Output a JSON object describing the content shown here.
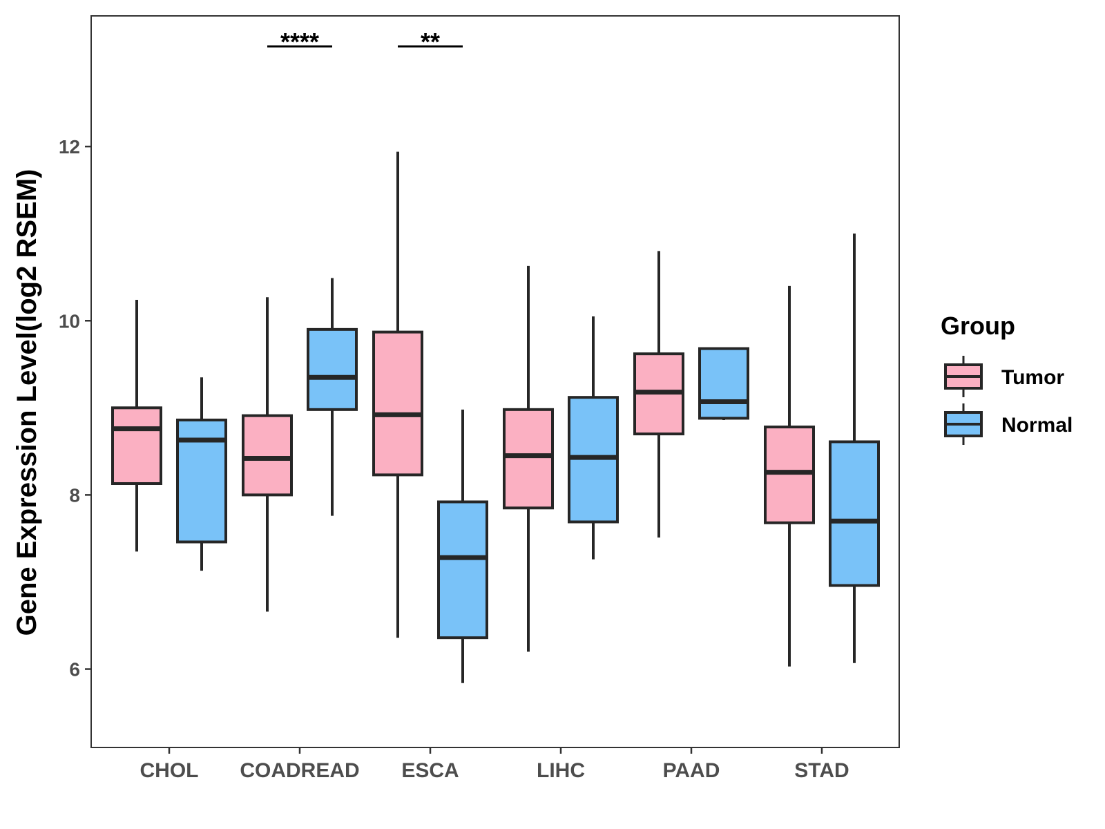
{
  "chart_data": {
    "type": "box",
    "title": "",
    "xlabel": "",
    "ylabel": "Gene Expression Level(log2 RSEM)",
    "ylim": [
      5.1,
      13.5
    ],
    "yticks": [
      6,
      8,
      10,
      12
    ],
    "grid": false,
    "categories": [
      "CHOL",
      "COADREAD",
      "ESCA",
      "LIHC",
      "PAAD",
      "STAD"
    ],
    "legend": {
      "title": "Group",
      "position": "right",
      "entries": [
        {
          "name": "Tumor",
          "color": "#fbb0c2"
        },
        {
          "name": "Normal",
          "color": "#79c2f8"
        }
      ]
    },
    "series": [
      {
        "name": "Tumor",
        "color": "#fbb0c2",
        "boxes": [
          {
            "category": "CHOL",
            "min": 7.35,
            "q1": 8.13,
            "median": 8.76,
            "q3": 9.0,
            "max": 10.24
          },
          {
            "category": "COADREAD",
            "min": 6.66,
            "q1": 8.0,
            "median": 8.42,
            "q3": 8.91,
            "max": 10.27
          },
          {
            "category": "ESCA",
            "min": 6.36,
            "q1": 8.23,
            "median": 8.92,
            "q3": 9.87,
            "max": 11.94
          },
          {
            "category": "LIHC",
            "min": 6.2,
            "q1": 7.85,
            "median": 8.45,
            "q3": 8.98,
            "max": 10.63
          },
          {
            "category": "PAAD",
            "min": 7.51,
            "q1": 8.7,
            "median": 9.18,
            "q3": 9.62,
            "max": 10.8
          },
          {
            "category": "STAD",
            "min": 6.03,
            "q1": 7.68,
            "median": 8.26,
            "q3": 8.78,
            "max": 10.4
          }
        ]
      },
      {
        "name": "Normal",
        "color": "#79c2f8",
        "boxes": [
          {
            "category": "CHOL",
            "min": 7.13,
            "q1": 7.46,
            "median": 8.63,
            "q3": 8.86,
            "max": 9.35
          },
          {
            "category": "COADREAD",
            "min": 7.76,
            "q1": 8.98,
            "median": 9.35,
            "q3": 9.9,
            "max": 10.49
          },
          {
            "category": "ESCA",
            "min": 5.84,
            "q1": 6.36,
            "median": 7.28,
            "q3": 7.92,
            "max": 8.98
          },
          {
            "category": "LIHC",
            "min": 7.26,
            "q1": 7.69,
            "median": 8.43,
            "q3": 9.12,
            "max": 10.05
          },
          {
            "category": "PAAD",
            "min": 8.86,
            "q1": 8.88,
            "median": 9.07,
            "q3": 9.68,
            "max": 9.68
          },
          {
            "category": "STAD",
            "min": 6.07,
            "q1": 6.96,
            "median": 7.7,
            "q3": 8.61,
            "max": 11.0
          }
        ]
      }
    ],
    "annotations": [
      {
        "category": "COADREAD",
        "label": "****",
        "y": 13.15
      },
      {
        "category": "ESCA",
        "label": "**",
        "y": 13.15
      }
    ]
  }
}
